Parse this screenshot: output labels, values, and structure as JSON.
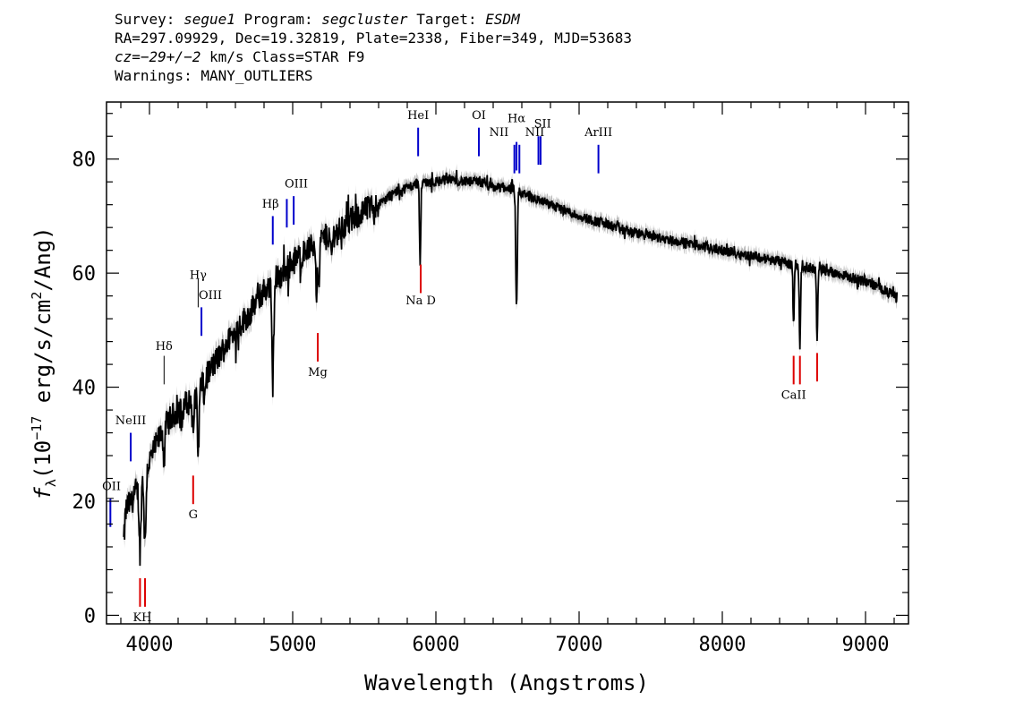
{
  "header": {
    "line1": {
      "survey_label": "Survey:",
      "survey": "segue1",
      "program_label": "Program:",
      "program": "segcluster",
      "target_label": "Target:",
      "target": "ESDM"
    },
    "line2": "RA=297.09929, Dec=19.32819, Plate=2338, Fiber=349, MJD=53683",
    "line3": {
      "cz": "cz=−29+/−2",
      "rest": "km/s Class=STAR F9"
    },
    "line4": "Warnings: MANY_OUTLIERS"
  },
  "chart_data": {
    "type": "line",
    "xlabel": "Wavelength (Angstroms)",
    "ylabel": "f_λ (10^-17 erg/s/cm^2/Ang)",
    "ylabel_parts": {
      "f": "f",
      "sub": "λ",
      "pre": "(10",
      "exp1": "−17",
      "mid": " erg/s/cm",
      "exp2": "2",
      "post": "/Ang)"
    },
    "xlim": [
      3700,
      9300
    ],
    "ylim": [
      -1.5,
      90
    ],
    "x_ticks": [
      4000,
      5000,
      6000,
      7000,
      8000,
      9000
    ],
    "x_tick_labels": [
      "4000",
      "5000",
      "6000",
      "7000",
      "8000",
      "9000"
    ],
    "y_ticks": [
      0,
      20,
      40,
      60,
      80
    ],
    "y_tick_labels": [
      "0",
      "20",
      "40",
      "60",
      "80"
    ],
    "colors": {
      "spectrum": "#000000",
      "error": "#b0b0b0",
      "emission": "#0000cc",
      "absorption": "#dd0000",
      "hline": "#000000"
    },
    "spectrum_continuum": {
      "x": [
        3820,
        3900,
        4000,
        4100,
        4200,
        4300,
        4400,
        4500,
        4600,
        4700,
        4800,
        4900,
        5000,
        5100,
        5200,
        5300,
        5400,
        5500,
        5600,
        5700,
        5800,
        5900,
        6000,
        6100,
        6200,
        6300,
        6400,
        6500,
        6600,
        6700,
        6800,
        6900,
        7000,
        7200,
        7400,
        7600,
        7800,
        8000,
        8200,
        8400,
        8600,
        8800,
        9000,
        9100,
        9200
      ],
      "y": [
        18,
        21,
        27,
        33,
        36,
        38,
        42,
        46,
        50,
        53,
        57,
        59,
        62,
        64,
        66,
        67,
        69,
        71,
        72,
        74,
        75,
        76,
        76,
        76.5,
        76,
        76,
        75,
        75,
        74,
        73,
        72,
        71,
        70,
        68.5,
        67,
        66,
        65,
        64,
        63,
        62,
        61,
        60,
        58.5,
        57.5,
        56
      ]
    },
    "absorption_features": [
      {
        "x": 3820,
        "depth": 5,
        "width": 15
      },
      {
        "x": 3934,
        "depth": 12,
        "width": 14
      },
      {
        "x": 3969,
        "depth": 13,
        "width": 14
      },
      {
        "x": 4102,
        "depth": 6,
        "width": 12
      },
      {
        "x": 4226,
        "depth": 3,
        "width": 10
      },
      {
        "x": 4305,
        "depth": 6,
        "width": 14
      },
      {
        "x": 4340,
        "depth": 11,
        "width": 14
      },
      {
        "x": 4383,
        "depth": 4,
        "width": 10
      },
      {
        "x": 4861,
        "depth": 18,
        "width": 14
      },
      {
        "x": 5167,
        "depth": 9,
        "width": 10
      },
      {
        "x": 5183,
        "depth": 10,
        "width": 10
      },
      {
        "x": 5270,
        "depth": 4,
        "width": 12
      },
      {
        "x": 5890,
        "depth": 14,
        "width": 10
      },
      {
        "x": 6563,
        "depth": 21,
        "width": 12
      },
      {
        "x": 8498,
        "depth": 10,
        "width": 10
      },
      {
        "x": 8542,
        "depth": 14,
        "width": 10
      },
      {
        "x": 8662,
        "depth": 12,
        "width": 10
      }
    ],
    "lines_emission": [
      {
        "label": "OII",
        "x": 3727,
        "y0": 15.5,
        "y1": 20.5
      },
      {
        "label": "NeIII",
        "x": 3869,
        "y0": 27,
        "y1": 32
      },
      {
        "label": "OIII",
        "x": 4363,
        "y0": 49,
        "y1": 54
      },
      {
        "label": "Hβ",
        "x": 4861,
        "y0": 65,
        "y1": 70
      },
      {
        "label": "OIII",
        "x": 4959,
        "y0": 68,
        "y1": 73
      },
      {
        "label": "OIII",
        "x": 5007,
        "y0": 68.5,
        "y1": 73.5
      },
      {
        "label": "HeI",
        "x": 5876,
        "y0": 80.5,
        "y1": 85.5
      },
      {
        "label": "OI",
        "x": 6300,
        "y0": 80.5,
        "y1": 85.5
      },
      {
        "label": "NII",
        "x": 6548,
        "y0": 77.5,
        "y1": 82.5
      },
      {
        "label": "Hα",
        "x": 6563,
        "y0": 78,
        "y1": 83
      },
      {
        "label": "NII",
        "x": 6583,
        "y0": 77.5,
        "y1": 82.5
      },
      {
        "label": "SII",
        "x": 6716,
        "y0": 79,
        "y1": 84
      },
      {
        "label": "SII",
        "x": 6731,
        "y0": 79,
        "y1": 84
      },
      {
        "label": "ArIII",
        "x": 7135,
        "y0": 77.5,
        "y1": 82.5
      }
    ],
    "lines_absorption": [
      {
        "label": "K",
        "x": 3934,
        "y0": 1.5,
        "y1": 6.5
      },
      {
        "label": "H",
        "x": 3969,
        "y0": 1.5,
        "y1": 6.5
      },
      {
        "label": "G",
        "x": 4305,
        "y0": 19.5,
        "y1": 24.5
      },
      {
        "label": "Mg",
        "x": 5175,
        "y0": 44.5,
        "y1": 49.5
      },
      {
        "label": "Na",
        "x": 5894,
        "y0": 56.5,
        "y1": 61.5
      },
      {
        "label": "CaII",
        "x": 8498,
        "y0": 40.5,
        "y1": 45.5
      },
      {
        "label": "CaII",
        "x": 8542,
        "y0": 40.5,
        "y1": 45.5
      },
      {
        "label": "CaII",
        "x": 8662,
        "y0": 41,
        "y1": 46
      }
    ],
    "line_labels": [
      {
        "text": "OII",
        "x": 3735,
        "y": 22
      },
      {
        "text": "NeIII",
        "x": 3869,
        "y": 33.5
      },
      {
        "text": "Hδ",
        "x": 4102,
        "y": 46.5
      },
      {
        "text": "Hγ",
        "x": 4340,
        "y": 59
      },
      {
        "text": "OIII",
        "x": 4425,
        "y": 55.5
      },
      {
        "text": "Hβ",
        "x": 4845,
        "y": 71.5
      },
      {
        "text": "OIII",
        "x": 5025,
        "y": 75
      },
      {
        "text": "HeI",
        "x": 5876,
        "y": 87
      },
      {
        "text": "OI",
        "x": 6300,
        "y": 87
      },
      {
        "text": "NII",
        "x": 6440,
        "y": 84
      },
      {
        "text": "Hα",
        "x": 6563,
        "y": 86.5
      },
      {
        "text": "NII",
        "x": 6690,
        "y": 84
      },
      {
        "text": "SII",
        "x": 6745,
        "y": 85.5
      },
      {
        "text": "ArIII",
        "x": 7135,
        "y": 84
      },
      {
        "text": "KH",
        "x": 3950,
        "y": -1
      },
      {
        "text": "G",
        "x": 4305,
        "y": 17
      },
      {
        "text": "Mg",
        "x": 5175,
        "y": 42
      },
      {
        "text": "Na  D",
        "x": 5894,
        "y": 54.5
      },
      {
        "text": "CaII",
        "x": 8498,
        "y": 38
      }
    ],
    "hydrogen_marks": [
      {
        "label": "Hδ",
        "x": 4102,
        "y0": 40.5,
        "y1": 45.5
      },
      {
        "label": "Hγ",
        "x": 4340,
        "y0": 54,
        "y1": 59
      }
    ],
    "oii_hline": {
      "x0": 3700,
      "x1": 3750,
      "y": 20.5
    }
  }
}
